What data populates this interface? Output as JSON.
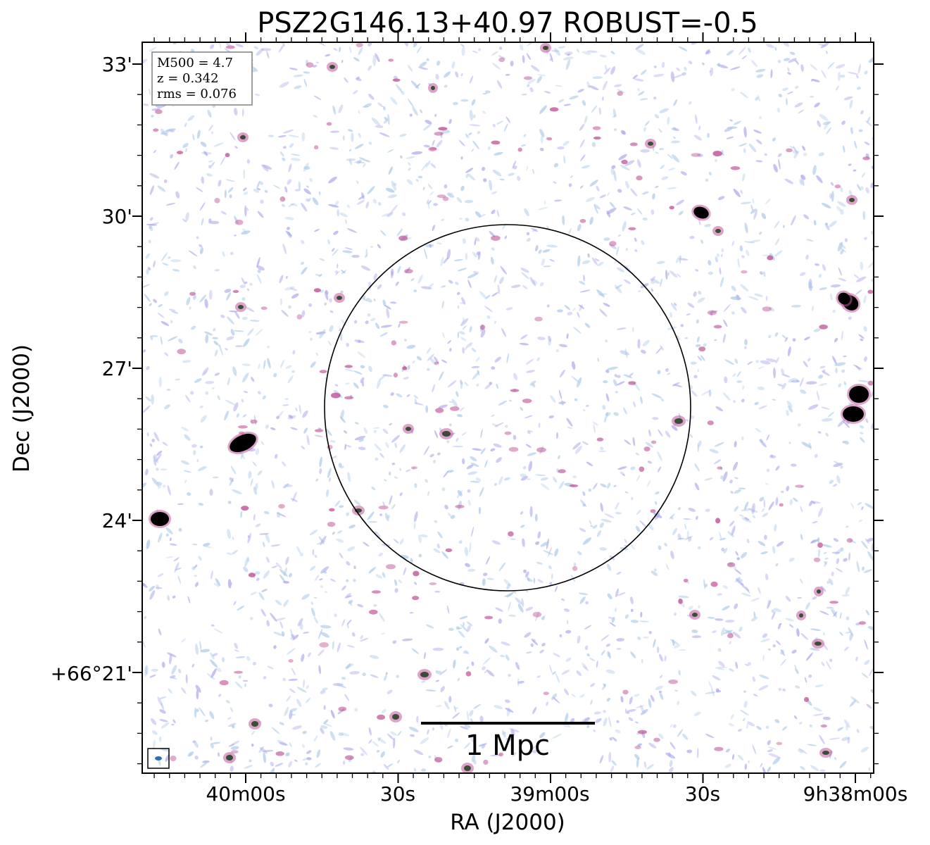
{
  "title": "PSZ2G146.13+40.97 ROBUST=-0.5",
  "xlabel": "RA (J2000)",
  "ylabel": "Dec (J2000)",
  "ra_ticks": [
    "40m00s",
    "30s",
    "39m00s",
    "30s",
    "9h38m00s"
  ],
  "dec_ticks": [
    "33'",
    "30'",
    "27'",
    "24'",
    "+66°21'"
  ],
  "info_box": {
    "mass": "M500 = 4.7",
    "redshift": "z = 0.342",
    "rms": "rms = 0.076"
  },
  "scale_bar_label": "1 Mpc",
  "colors": {
    "noise_blue": "#a9c8e6",
    "noise_violet": "#a9a4ea",
    "source_magenta": "#c2579a",
    "source_core": "#000000",
    "circle": "#000000",
    "beam": "#2f6fb0"
  }
}
